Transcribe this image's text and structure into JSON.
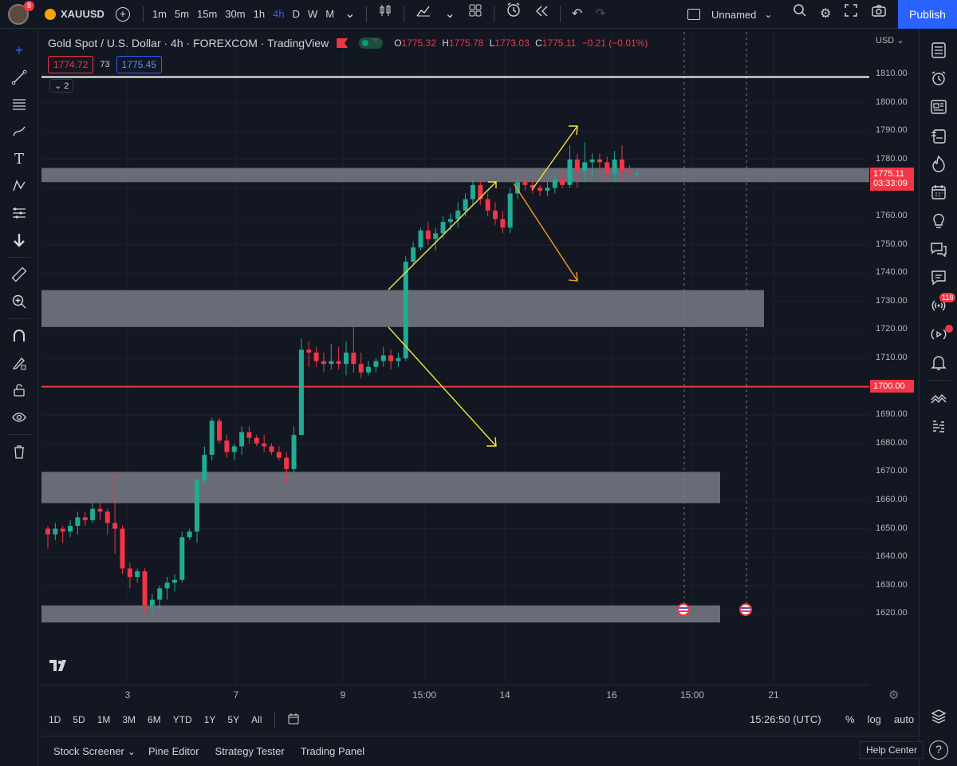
{
  "topbar": {
    "avatar_badge": "8",
    "symbol": "XAUUSD",
    "intervals": [
      "1m",
      "5m",
      "15m",
      "30m",
      "1h",
      "4h",
      "D",
      "W",
      "M"
    ],
    "active_interval": "4h",
    "layout_name": "Unnamed",
    "publish_label": "Publish"
  },
  "legend": {
    "title": "Gold Spot / U.S. Dollar · 4h · FOREXCOM · TradingView",
    "open_label": "O",
    "open": "1775.32",
    "high_label": "H",
    "high": "1775.78",
    "low_label": "L",
    "low": "1773.03",
    "close_label": "C",
    "close": "1775.11",
    "change": "−0.21 (−0.01%)",
    "bid": "1774.72",
    "spread": "73",
    "ask": "1775.45",
    "collapse_count": "2"
  },
  "price_axis": {
    "currency": "USD",
    "labels": [
      "1810.00",
      "1800.00",
      "1790.00",
      "1780.00",
      "1770.00",
      "1760.00",
      "1750.00",
      "1740.00",
      "1730.00",
      "1720.00",
      "1710.00",
      "1700.00",
      "1690.00",
      "1680.00",
      "1670.00",
      "1660.00",
      "1650.00",
      "1640.00",
      "1630.00",
      "1620.00"
    ],
    "current_price": "1775.11",
    "countdown": "03:33:09",
    "level_1700": "1700.00"
  },
  "date_axis": {
    "labels": [
      "3",
      "7",
      "9",
      "15:00",
      "14",
      "16",
      "15:00",
      "21"
    ]
  },
  "bottom": {
    "ranges": [
      "1D",
      "5D",
      "1M",
      "3M",
      "6M",
      "YTD",
      "1Y",
      "5Y",
      "All"
    ],
    "time": "15:26:50 (UTC)",
    "percent": "%",
    "log": "log",
    "auto": "auto"
  },
  "panels": {
    "items": [
      "Stock Screener",
      "Pine Editor",
      "Strategy Tester",
      "Trading Panel"
    ],
    "help": "Help Center"
  },
  "right_toolbar": {
    "badge": "118"
  },
  "colors": {
    "up": "#22ab94",
    "down": "#f23645",
    "zone": "#787b86",
    "arrow_yellow": "#f5e533",
    "arrow_orange": "#f59b1f",
    "accent": "#2962ff"
  },
  "chart_data": {
    "type": "candlestick",
    "symbol": "XAUUSD",
    "timeframe": "4h",
    "ylim": [
      1609,
      1826
    ],
    "candles": [
      [
        1650,
        1651,
        1643,
        1648
      ],
      [
        1648,
        1652,
        1646,
        1650
      ],
      [
        1650,
        1651,
        1645,
        1649
      ],
      [
        1649,
        1653,
        1647,
        1651
      ],
      [
        1651,
        1656,
        1648,
        1654
      ],
      [
        1654,
        1656,
        1651,
        1653
      ],
      [
        1653,
        1659,
        1652,
        1657
      ],
      [
        1657,
        1659,
        1653,
        1656
      ],
      [
        1656,
        1657,
        1648,
        1652
      ],
      [
        1652,
        1670,
        1641,
        1650
      ],
      [
        1650,
        1651,
        1634,
        1636
      ],
      [
        1636,
        1638,
        1629,
        1633
      ],
      [
        1633,
        1636,
        1631,
        1635
      ],
      [
        1635,
        1636,
        1620,
        1623
      ],
      [
        1623,
        1627,
        1620,
        1625
      ],
      [
        1625,
        1630,
        1622,
        1629
      ],
      [
        1629,
        1633,
        1625,
        1631
      ],
      [
        1631,
        1634,
        1628,
        1632
      ],
      [
        1632,
        1649,
        1631,
        1647
      ],
      [
        1647,
        1650,
        1646,
        1649
      ],
      [
        1649,
        1668,
        1645,
        1667
      ],
      [
        1667,
        1679,
        1666,
        1676
      ],
      [
        1676,
        1689,
        1674,
        1688
      ],
      [
        1688,
        1689,
        1680,
        1681
      ],
      [
        1681,
        1683,
        1675,
        1677
      ],
      [
        1677,
        1680,
        1674,
        1679
      ],
      [
        1679,
        1686,
        1676,
        1684
      ],
      [
        1684,
        1686,
        1680,
        1682
      ],
      [
        1682,
        1683,
        1679,
        1680
      ],
      [
        1680,
        1683,
        1677,
        1679
      ],
      [
        1679,
        1680,
        1676,
        1677
      ],
      [
        1677,
        1679,
        1674,
        1675
      ],
      [
        1675,
        1677,
        1666,
        1671
      ],
      [
        1671,
        1686,
        1670,
        1683
      ],
      [
        1683,
        1717,
        1683,
        1713
      ],
      [
        1713,
        1716,
        1707,
        1712
      ],
      [
        1712,
        1714,
        1707,
        1709
      ],
      [
        1709,
        1712,
        1705,
        1708
      ],
      [
        1708,
        1715,
        1706,
        1709
      ],
      [
        1709,
        1714,
        1706,
        1708
      ],
      [
        1708,
        1716,
        1704,
        1712
      ],
      [
        1712,
        1722,
        1705,
        1708
      ],
      [
        1708,
        1712,
        1703,
        1705
      ],
      [
        1705,
        1709,
        1704,
        1707
      ],
      [
        1707,
        1710,
        1705,
        1709
      ],
      [
        1709,
        1714,
        1707,
        1711
      ],
      [
        1711,
        1713,
        1706,
        1709
      ],
      [
        1709,
        1712,
        1707,
        1710
      ],
      [
        1710,
        1746,
        1709,
        1744
      ],
      [
        1744,
        1751,
        1743,
        1749
      ],
      [
        1749,
        1756,
        1748,
        1755
      ],
      [
        1755,
        1758,
        1750,
        1752
      ],
      [
        1752,
        1756,
        1748,
        1754
      ],
      [
        1754,
        1760,
        1752,
        1758
      ],
      [
        1758,
        1761,
        1755,
        1759
      ],
      [
        1759,
        1765,
        1756,
        1762
      ],
      [
        1762,
        1768,
        1760,
        1766
      ],
      [
        1766,
        1773,
        1764,
        1771
      ],
      [
        1771,
        1773,
        1764,
        1766
      ],
      [
        1766,
        1768,
        1760,
        1762
      ],
      [
        1762,
        1765,
        1757,
        1759
      ],
      [
        1759,
        1762,
        1754,
        1756
      ],
      [
        1756,
        1770,
        1754,
        1768
      ],
      [
        1768,
        1774,
        1766,
        1772
      ],
      [
        1772,
        1775,
        1769,
        1771
      ],
      [
        1771,
        1773,
        1768,
        1770
      ],
      [
        1770,
        1771,
        1767,
        1769
      ],
      [
        1769,
        1772,
        1767,
        1770
      ],
      [
        1770,
        1775,
        1768,
        1773
      ],
      [
        1773,
        1776,
        1770,
        1771
      ],
      [
        1771,
        1785,
        1770,
        1780
      ],
      [
        1780,
        1782,
        1770,
        1776
      ],
      [
        1776,
        1786,
        1772,
        1779
      ],
      [
        1779,
        1782,
        1774,
        1780
      ],
      [
        1780,
        1782,
        1776,
        1779
      ],
      [
        1779,
        1781,
        1773,
        1775
      ],
      [
        1775,
        1783,
        1772,
        1780
      ],
      [
        1780,
        1785,
        1772,
        1776
      ],
      [
        1776,
        1778,
        1773,
        1775
      ],
      [
        1775,
        1776,
        1774,
        1775
      ]
    ],
    "zones": [
      {
        "from": 1772,
        "to": 1777
      },
      {
        "from": 1721,
        "to": 1734
      },
      {
        "from": 1659,
        "to": 1670
      },
      {
        "from": 1617,
        "to": 1623
      }
    ],
    "levels": [
      {
        "price": 1809,
        "color": "#ffffff"
      },
      {
        "price": 1700,
        "color": "#f23645"
      }
    ]
  }
}
